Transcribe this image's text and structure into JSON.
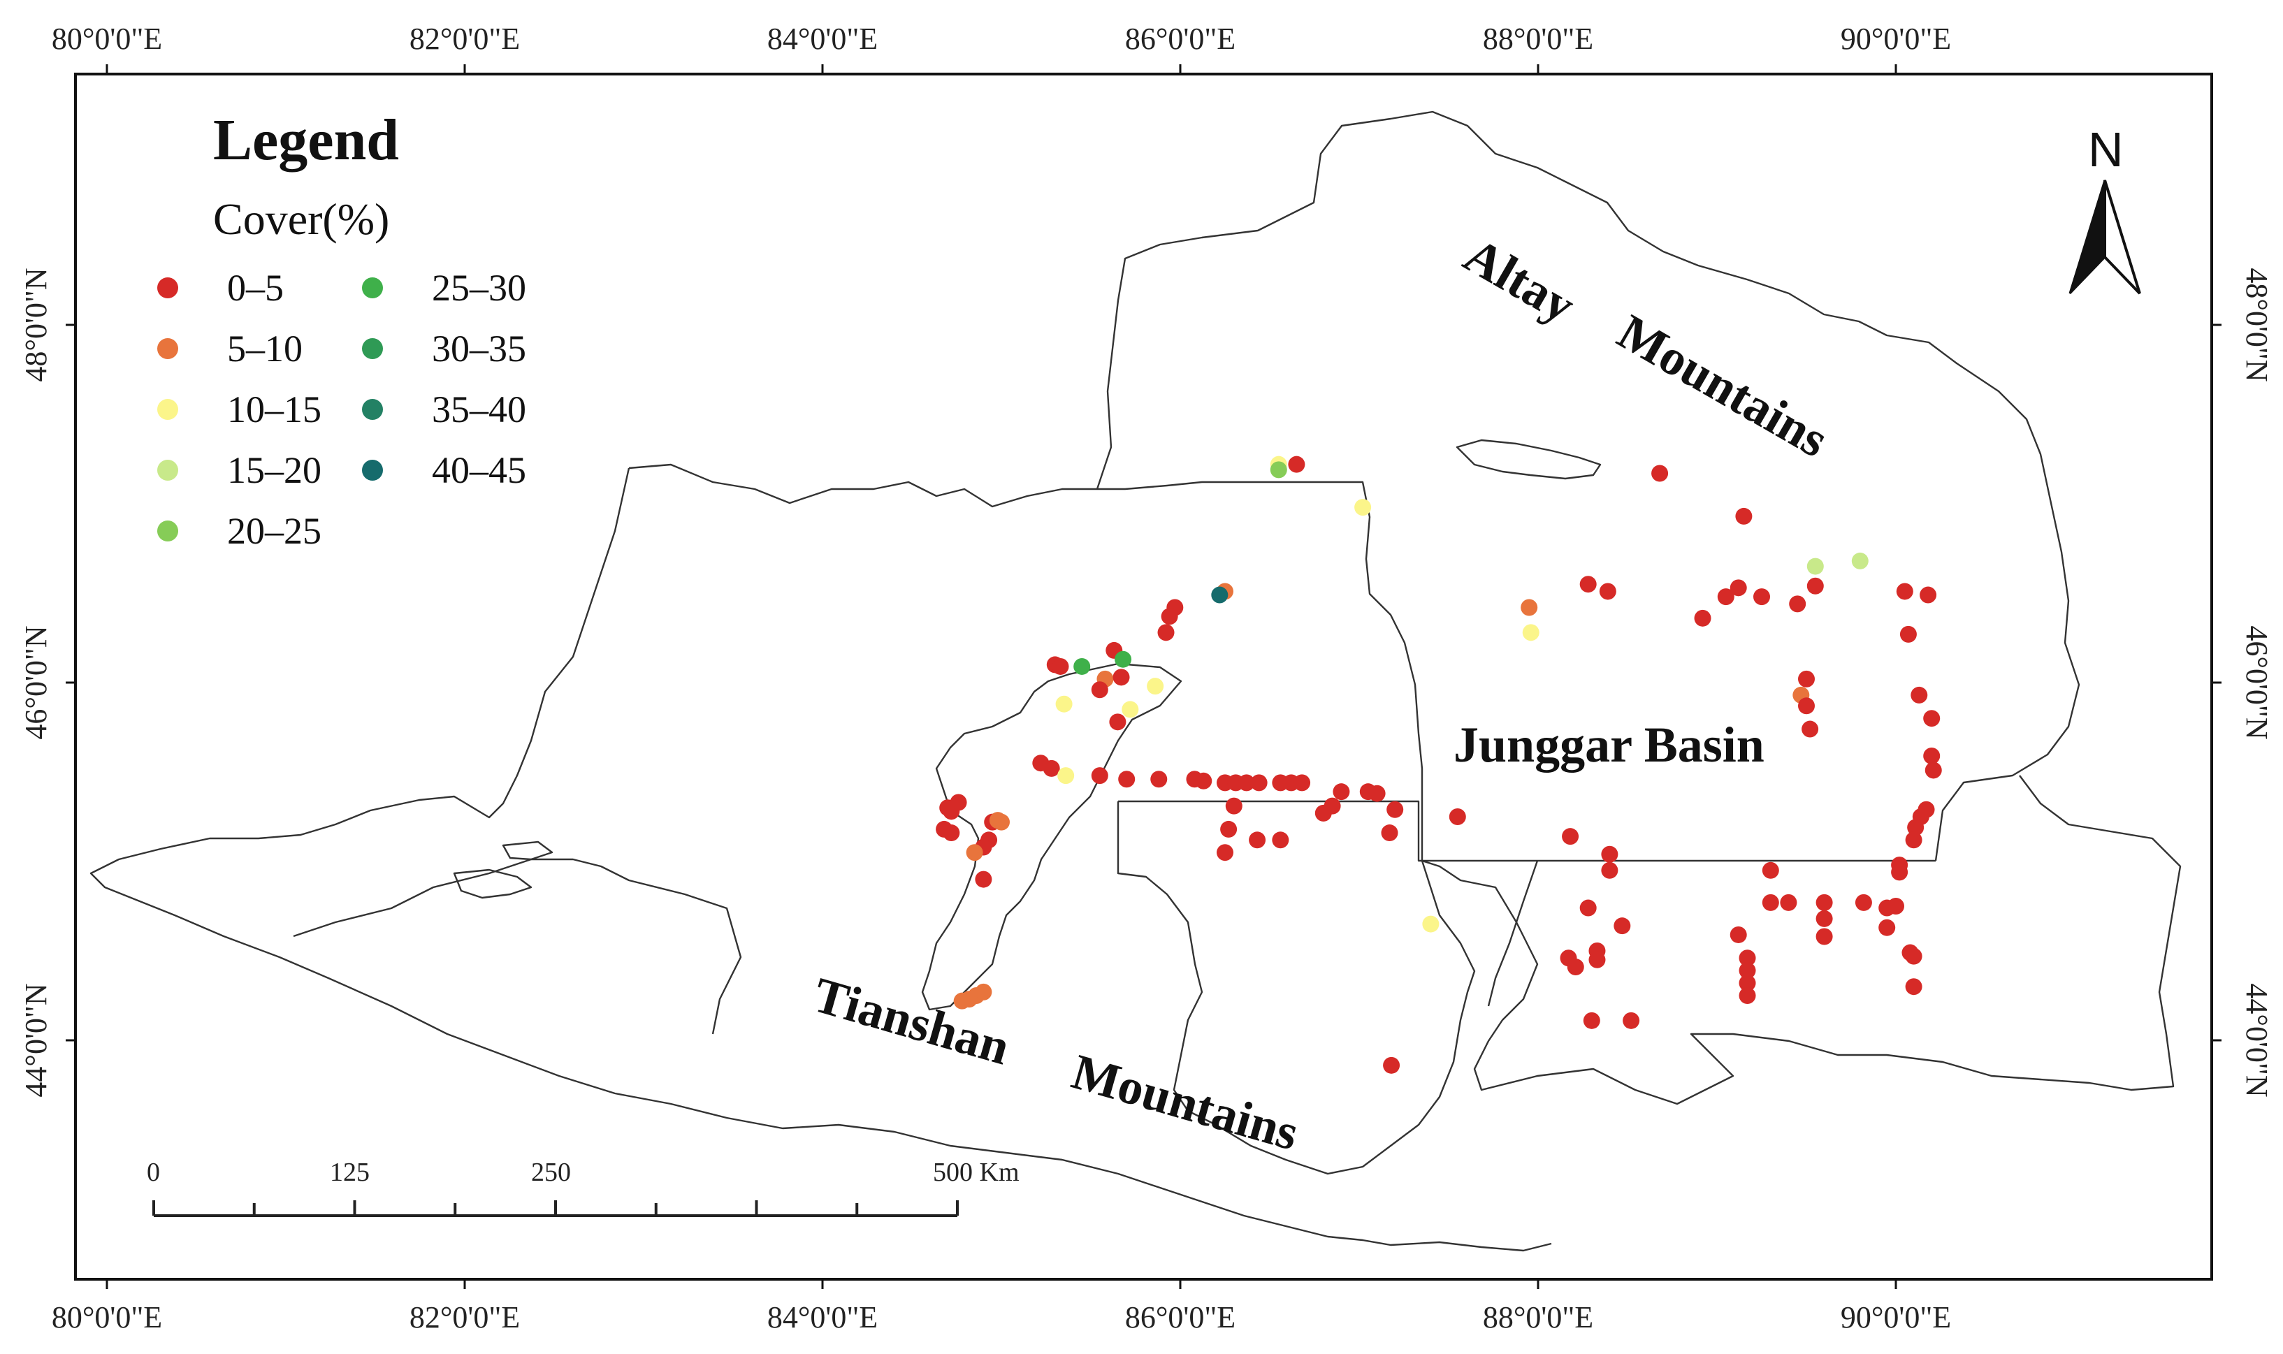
{
  "map": {
    "top_axis_labels": [
      "80°0'0\"E",
      "82°0'0\"E",
      "84°0'0\"E",
      "86°0'0\"E",
      "88°0'0\"E",
      "90°0'0\"E"
    ],
    "bottom_axis_labels": [
      "80°0'0\"E",
      "82°0'0\"E",
      "84°0'0\"E",
      "86°0'0\"E",
      "88°0'0\"E",
      "90°0'0\"E"
    ],
    "left_axis_labels": [
      "48°0'0\"N",
      "46°0'0\"N",
      "44°0'0\"N"
    ],
    "right_axis_labels": [
      "48°0'0\"N",
      "46°0'0\"N",
      "44°0'0\"N"
    ],
    "region_labels": {
      "altay": "Altay",
      "mountains_north": "Mountains",
      "junggar": "Junggar Basin",
      "tianshan": "Tianshan",
      "mountains_south": "Mountains"
    },
    "north_arrow": "N",
    "scale_bar": {
      "labels": [
        "0",
        "125",
        "250",
        "500 Km"
      ]
    }
  },
  "legend": {
    "title": "Legend",
    "subtitle": "Cover(%)",
    "items": [
      {
        "label": "0–5",
        "color": "#d62a27"
      },
      {
        "label": "5–10",
        "color": "#e8743c"
      },
      {
        "label": "10–15",
        "color": "#fbf58a"
      },
      {
        "label": "15–20",
        "color": "#c8e98a"
      },
      {
        "label": "20–25",
        "color": "#86cc57"
      },
      {
        "label": "25–30",
        "color": "#3fb04a"
      },
      {
        "label": "30–35",
        "color": "#2f9a55"
      },
      {
        "label": "35–40",
        "color": "#238164"
      },
      {
        "label": "40–45",
        "color": "#166b6c"
      }
    ]
  },
  "points": [
    {
      "lon": 86.65,
      "lat": 47.22,
      "cls": 0
    },
    {
      "lon": 86.55,
      "lat": 47.22,
      "cls": 2
    },
    {
      "lon": 86.55,
      "lat": 47.19,
      "cls": 4
    },
    {
      "lon": 87.02,
      "lat": 46.98,
      "cls": 2
    },
    {
      "lon": 86.25,
      "lat": 46.51,
      "cls": 1
    },
    {
      "lon": 86.22,
      "lat": 46.49,
      "cls": 8
    },
    {
      "lon": 85.97,
      "lat": 46.42,
      "cls": 0
    },
    {
      "lon": 85.94,
      "lat": 46.37,
      "cls": 0
    },
    {
      "lon": 85.92,
      "lat": 46.28,
      "cls": 0
    },
    {
      "lon": 85.3,
      "lat": 46.1,
      "cls": 0
    },
    {
      "lon": 85.33,
      "lat": 46.09,
      "cls": 0
    },
    {
      "lon": 85.45,
      "lat": 46.09,
      "cls": 5
    },
    {
      "lon": 85.63,
      "lat": 46.18,
      "cls": 0
    },
    {
      "lon": 85.68,
      "lat": 46.13,
      "cls": 5
    },
    {
      "lon": 85.58,
      "lat": 46.02,
      "cls": 1
    },
    {
      "lon": 85.55,
      "lat": 45.96,
      "cls": 0
    },
    {
      "lon": 85.67,
      "lat": 46.03,
      "cls": 0
    },
    {
      "lon": 85.86,
      "lat": 45.98,
      "cls": 2
    },
    {
      "lon": 85.35,
      "lat": 45.88,
      "cls": 2
    },
    {
      "lon": 85.72,
      "lat": 45.85,
      "cls": 2
    },
    {
      "lon": 85.65,
      "lat": 45.78,
      "cls": 0
    },
    {
      "lon": 85.22,
      "lat": 45.55,
      "cls": 0
    },
    {
      "lon": 85.28,
      "lat": 45.52,
      "cls": 0
    },
    {
      "lon": 85.36,
      "lat": 45.48,
      "cls": 2
    },
    {
      "lon": 85.55,
      "lat": 45.48,
      "cls": 0
    },
    {
      "lon": 85.7,
      "lat": 45.46,
      "cls": 0
    },
    {
      "lon": 85.88,
      "lat": 45.46,
      "cls": 0
    },
    {
      "lon": 86.08,
      "lat": 45.46,
      "cls": 0
    },
    {
      "lon": 86.13,
      "lat": 45.45,
      "cls": 0
    },
    {
      "lon": 86.25,
      "lat": 45.44,
      "cls": 0
    },
    {
      "lon": 86.31,
      "lat": 45.44,
      "cls": 0
    },
    {
      "lon": 86.37,
      "lat": 45.44,
      "cls": 0
    },
    {
      "lon": 86.44,
      "lat": 45.44,
      "cls": 0
    },
    {
      "lon": 86.56,
      "lat": 45.44,
      "cls": 0
    },
    {
      "lon": 86.62,
      "lat": 45.44,
      "cls": 0
    },
    {
      "lon": 86.68,
      "lat": 45.44,
      "cls": 0
    },
    {
      "lon": 86.9,
      "lat": 45.39,
      "cls": 0
    },
    {
      "lon": 87.05,
      "lat": 45.39,
      "cls": 0
    },
    {
      "lon": 87.1,
      "lat": 45.38,
      "cls": 0
    },
    {
      "lon": 86.85,
      "lat": 45.31,
      "cls": 0
    },
    {
      "lon": 86.8,
      "lat": 45.27,
      "cls": 0
    },
    {
      "lon": 86.3,
      "lat": 45.31,
      "cls": 0
    },
    {
      "lon": 87.2,
      "lat": 45.29,
      "cls": 0
    },
    {
      "lon": 87.17,
      "lat": 45.16,
      "cls": 0
    },
    {
      "lon": 86.27,
      "lat": 45.18,
      "cls": 0
    },
    {
      "lon": 86.43,
      "lat": 45.12,
      "cls": 0
    },
    {
      "lon": 86.56,
      "lat": 45.12,
      "cls": 0
    },
    {
      "lon": 86.25,
      "lat": 45.05,
      "cls": 0
    },
    {
      "lon": 87.55,
      "lat": 45.25,
      "cls": 0
    },
    {
      "lon": 84.7,
      "lat": 45.3,
      "cls": 0
    },
    {
      "lon": 84.72,
      "lat": 45.28,
      "cls": 0
    },
    {
      "lon": 84.76,
      "lat": 45.33,
      "cls": 0
    },
    {
      "lon": 84.68,
      "lat": 45.18,
      "cls": 0
    },
    {
      "lon": 84.72,
      "lat": 45.16,
      "cls": 0
    },
    {
      "lon": 84.95,
      "lat": 45.22,
      "cls": 0
    },
    {
      "lon": 84.98,
      "lat": 45.23,
      "cls": 1
    },
    {
      "lon": 85.0,
      "lat": 45.22,
      "cls": 1
    },
    {
      "lon": 84.93,
      "lat": 45.12,
      "cls": 0
    },
    {
      "lon": 84.9,
      "lat": 45.08,
      "cls": 0
    },
    {
      "lon": 84.85,
      "lat": 45.05,
      "cls": 1
    },
    {
      "lon": 84.9,
      "lat": 44.9,
      "cls": 0
    },
    {
      "lon": 84.78,
      "lat": 44.22,
      "cls": 1
    },
    {
      "lon": 84.82,
      "lat": 44.23,
      "cls": 1
    },
    {
      "lon": 84.86,
      "lat": 44.25,
      "cls": 1
    },
    {
      "lon": 84.9,
      "lat": 44.27,
      "cls": 1
    },
    {
      "lon": 87.4,
      "lat": 44.65,
      "cls": 2
    },
    {
      "lon": 87.18,
      "lat": 43.86,
      "cls": 0
    },
    {
      "lon": 88.68,
      "lat": 47.17,
      "cls": 0
    },
    {
      "lon": 89.15,
      "lat": 46.93,
      "cls": 0
    },
    {
      "lon": 89.55,
      "lat": 46.65,
      "cls": 3
    },
    {
      "lon": 89.8,
      "lat": 46.68,
      "cls": 3
    },
    {
      "lon": 88.28,
      "lat": 46.55,
      "cls": 0
    },
    {
      "lon": 88.39,
      "lat": 46.51,
      "cls": 0
    },
    {
      "lon": 89.12,
      "lat": 46.53,
      "cls": 0
    },
    {
      "lon": 89.55,
      "lat": 46.54,
      "cls": 0
    },
    {
      "lon": 89.05,
      "lat": 46.48,
      "cls": 0
    },
    {
      "lon": 89.25,
      "lat": 46.48,
      "cls": 0
    },
    {
      "lon": 89.45,
      "lat": 46.44,
      "cls": 0
    },
    {
      "lon": 88.92,
      "lat": 46.36,
      "cls": 0
    },
    {
      "lon": 87.95,
      "lat": 46.42,
      "cls": 1
    },
    {
      "lon": 87.96,
      "lat": 46.28,
      "cls": 2
    },
    {
      "lon": 90.05,
      "lat": 46.51,
      "cls": 0
    },
    {
      "lon": 90.18,
      "lat": 46.49,
      "cls": 0
    },
    {
      "lon": 90.07,
      "lat": 46.27,
      "cls": 0
    },
    {
      "lon": 89.5,
      "lat": 46.02,
      "cls": 0
    },
    {
      "lon": 89.47,
      "lat": 45.93,
      "cls": 1
    },
    {
      "lon": 89.5,
      "lat": 45.87,
      "cls": 0
    },
    {
      "lon": 89.52,
      "lat": 45.74,
      "cls": 0
    },
    {
      "lon": 90.13,
      "lat": 45.93,
      "cls": 0
    },
    {
      "lon": 90.2,
      "lat": 45.8,
      "cls": 0
    },
    {
      "lon": 90.2,
      "lat": 45.59,
      "cls": 0
    },
    {
      "lon": 90.21,
      "lat": 45.51,
      "cls": 0
    },
    {
      "lon": 90.17,
      "lat": 45.29,
      "cls": 0
    },
    {
      "lon": 90.14,
      "lat": 45.25,
      "cls": 0
    },
    {
      "lon": 90.11,
      "lat": 45.19,
      "cls": 0
    },
    {
      "lon": 90.1,
      "lat": 45.12,
      "cls": 0
    },
    {
      "lon": 88.18,
      "lat": 45.14,
      "cls": 0
    },
    {
      "lon": 88.4,
      "lat": 45.04,
      "cls": 0
    },
    {
      "lon": 88.4,
      "lat": 44.95,
      "cls": 0
    },
    {
      "lon": 89.3,
      "lat": 44.95,
      "cls": 0
    },
    {
      "lon": 90.02,
      "lat": 44.98,
      "cls": 0
    },
    {
      "lon": 90.02,
      "lat": 44.94,
      "cls": 0
    },
    {
      "lon": 89.3,
      "lat": 44.77,
      "cls": 0
    },
    {
      "lon": 89.4,
      "lat": 44.77,
      "cls": 0
    },
    {
      "lon": 89.6,
      "lat": 44.77,
      "cls": 0
    },
    {
      "lon": 89.6,
      "lat": 44.68,
      "cls": 0
    },
    {
      "lon": 89.6,
      "lat": 44.58,
      "cls": 0
    },
    {
      "lon": 89.82,
      "lat": 44.77,
      "cls": 0
    },
    {
      "lon": 89.95,
      "lat": 44.74,
      "cls": 0
    },
    {
      "lon": 90.0,
      "lat": 44.75,
      "cls": 0
    },
    {
      "lon": 89.95,
      "lat": 44.63,
      "cls": 0
    },
    {
      "lon": 88.28,
      "lat": 44.74,
      "cls": 0
    },
    {
      "lon": 88.47,
      "lat": 44.64,
      "cls": 0
    },
    {
      "lon": 89.12,
      "lat": 44.59,
      "cls": 0
    },
    {
      "lon": 89.17,
      "lat": 44.46,
      "cls": 0
    },
    {
      "lon": 89.17,
      "lat": 44.39,
      "cls": 0
    },
    {
      "lon": 89.17,
      "lat": 44.32,
      "cls": 0
    },
    {
      "lon": 89.17,
      "lat": 44.25,
      "cls": 0
    },
    {
      "lon": 88.33,
      "lat": 44.5,
      "cls": 0
    },
    {
      "lon": 88.33,
      "lat": 44.45,
      "cls": 0
    },
    {
      "lon": 88.17,
      "lat": 44.46,
      "cls": 0
    },
    {
      "lon": 88.21,
      "lat": 44.41,
      "cls": 0
    },
    {
      "lon": 88.3,
      "lat": 44.11,
      "cls": 0
    },
    {
      "lon": 88.52,
      "lat": 44.11,
      "cls": 0
    },
    {
      "lon": 90.08,
      "lat": 44.49,
      "cls": 0
    },
    {
      "lon": 90.1,
      "lat": 44.47,
      "cls": 0
    },
    {
      "lon": 90.1,
      "lat": 44.3,
      "cls": 0
    }
  ]
}
